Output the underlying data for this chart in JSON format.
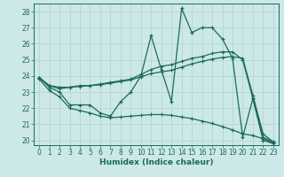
{
  "xlabel": "Humidex (Indice chaleur)",
  "xlim": [
    -0.5,
    23.5
  ],
  "ylim": [
    19.7,
    28.5
  ],
  "yticks": [
    20,
    21,
    22,
    23,
    24,
    25,
    26,
    27,
    28
  ],
  "xticks": [
    0,
    1,
    2,
    3,
    4,
    5,
    6,
    7,
    8,
    9,
    10,
    11,
    12,
    13,
    14,
    15,
    16,
    17,
    18,
    19,
    20,
    21,
    22,
    23
  ],
  "bg_color": "#cce8e8",
  "line_color": "#1a6b5a",
  "grid_color": "#b8d8d8",
  "line1_x": [
    0,
    1,
    2,
    3,
    4,
    5,
    6,
    7,
    8,
    9,
    10,
    11,
    12,
    13,
    14,
    15,
    16,
    17,
    18,
    19,
    20,
    21,
    22,
    23
  ],
  "line1_y": [
    23.9,
    23.3,
    23.0,
    22.2,
    22.2,
    22.2,
    21.7,
    21.5,
    22.4,
    23.0,
    24.0,
    26.5,
    24.4,
    22.4,
    28.2,
    26.7,
    27.0,
    27.0,
    26.3,
    25.1,
    20.2,
    22.6,
    20.0,
    19.8
  ],
  "line2_x": [
    0,
    1,
    2,
    3,
    4,
    5,
    6,
    7,
    8,
    9,
    10,
    11,
    12,
    13,
    14,
    15,
    16,
    17,
    18,
    19,
    20,
    21,
    22,
    23
  ],
  "line2_y": [
    23.9,
    23.4,
    23.3,
    23.3,
    23.4,
    23.4,
    23.5,
    23.6,
    23.7,
    23.8,
    24.1,
    24.4,
    24.6,
    24.7,
    24.9,
    25.1,
    25.2,
    25.4,
    25.5,
    25.5,
    25.0,
    22.6,
    20.2,
    19.9
  ],
  "line3_x": [
    0,
    1,
    2,
    3,
    4,
    5,
    6,
    7,
    8,
    9,
    10,
    11,
    12,
    13,
    14,
    15,
    16,
    17,
    18,
    19,
    20,
    21,
    22,
    23
  ],
  "line3_y": [
    23.9,
    23.4,
    23.2,
    23.3,
    23.35,
    23.4,
    23.45,
    23.55,
    23.65,
    23.75,
    23.95,
    24.15,
    24.25,
    24.35,
    24.55,
    24.75,
    24.9,
    25.05,
    25.15,
    25.2,
    25.1,
    22.8,
    20.4,
    19.9
  ],
  "line4_x": [
    0,
    1,
    2,
    3,
    4,
    5,
    6,
    7,
    8,
    9,
    10,
    11,
    12,
    13,
    14,
    15,
    16,
    17,
    18,
    19,
    20,
    21,
    22,
    23
  ],
  "line4_y": [
    23.8,
    23.1,
    22.7,
    22.0,
    21.85,
    21.7,
    21.5,
    21.4,
    21.45,
    21.5,
    21.55,
    21.6,
    21.6,
    21.55,
    21.45,
    21.35,
    21.2,
    21.05,
    20.85,
    20.65,
    20.4,
    20.3,
    20.1,
    19.85
  ]
}
